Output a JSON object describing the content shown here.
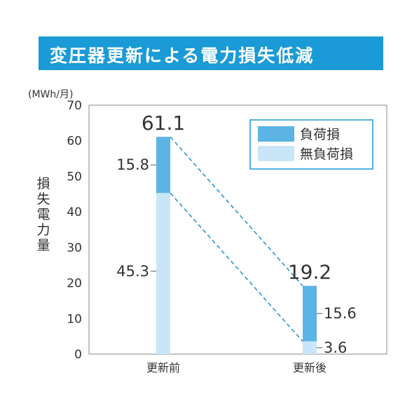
{
  "title": "変圧器更新による電力損失低減",
  "chart_data": {
    "type": "bar",
    "stacked": true,
    "unit": "(MWh/月)",
    "ylabel": "損失電力量",
    "ylim": [
      0,
      70
    ],
    "yticks": [
      0,
      10,
      20,
      30,
      40,
      50,
      60,
      70
    ],
    "categories": [
      "更新前",
      "更新後"
    ],
    "series": [
      {
        "name": "無負荷損",
        "values": [
          45.3,
          3.6
        ],
        "color": "#c8e6f7"
      },
      {
        "name": "負荷損",
        "values": [
          15.8,
          15.6
        ],
        "color": "#5cb4e4"
      }
    ],
    "totals": [
      "61.1",
      "19.2"
    ],
    "legend": "top-right",
    "grid": false,
    "connector_color": "#1a8fcf"
  }
}
